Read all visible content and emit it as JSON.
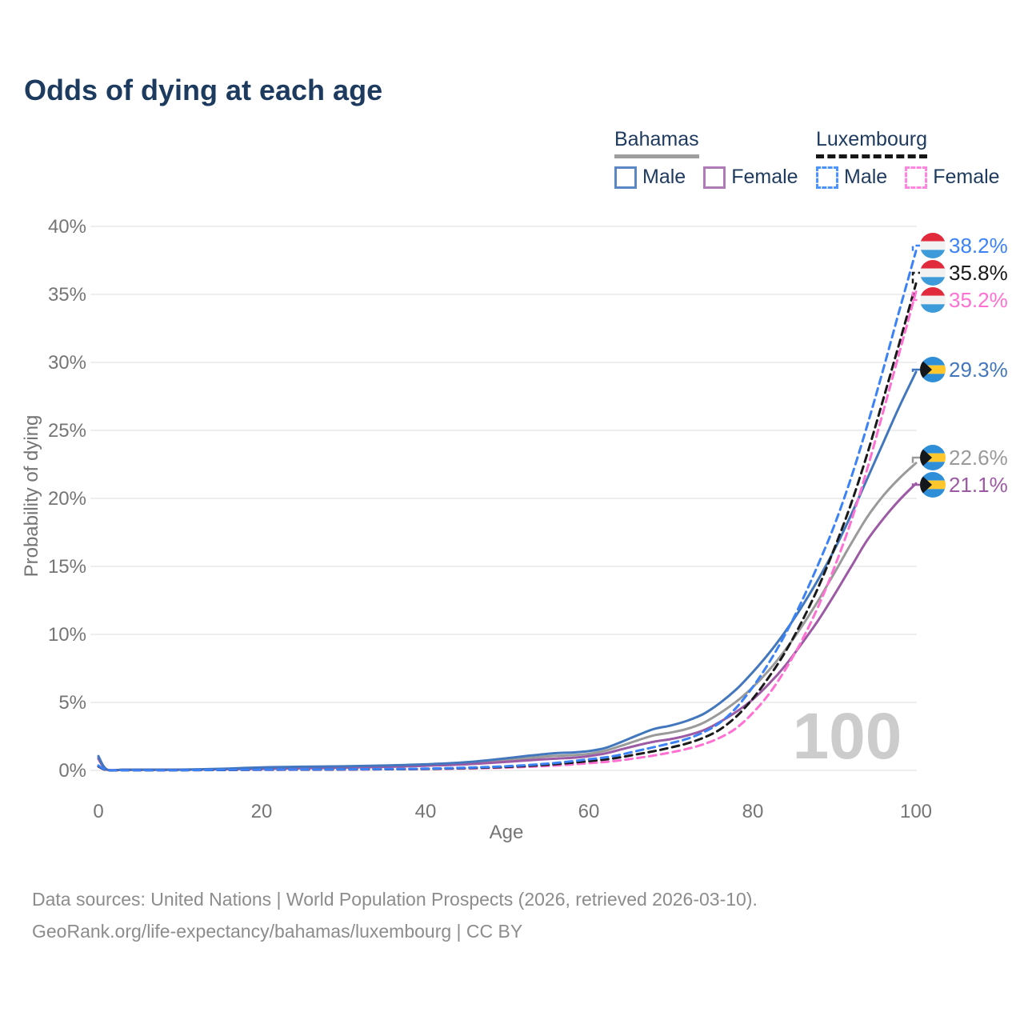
{
  "title": "Odds of dying at each age",
  "watermark": "100",
  "legend": {
    "groups": [
      {
        "name": "Bahamas",
        "line_style": "solid",
        "underline_color": "#9e9e9e",
        "items": [
          {
            "label": "Male",
            "color": "#5b87c5"
          },
          {
            "label": "Female",
            "color": "#b079b8"
          }
        ]
      },
      {
        "name": "Luxembourg",
        "line_style": "dashed",
        "underline_color": "#161616",
        "items": [
          {
            "label": "Male",
            "color": "#4d94ff"
          },
          {
            "label": "Female",
            "color": "#ff85e0"
          }
        ]
      }
    ]
  },
  "axes": {
    "y_title": "Probability of dying",
    "x_title": "Age",
    "y_ticks": [
      "0%",
      "5%",
      "10%",
      "15%",
      "20%",
      "25%",
      "30%",
      "35%",
      "40%"
    ],
    "y_tick_values": [
      0,
      5,
      10,
      15,
      20,
      25,
      30,
      35,
      40
    ],
    "x_ticks": [
      "0",
      "20",
      "40",
      "60",
      "80",
      "100"
    ],
    "x_tick_values": [
      0,
      20,
      40,
      60,
      80,
      100
    ]
  },
  "flags": {
    "luxembourg": {
      "red": "#e12a3c",
      "white": "#f2f2f2",
      "blue": "#3d9bd9"
    },
    "bahamas": {
      "aqua": "#2e8fd8",
      "gold": "#ffc72c",
      "black": "#14171c"
    }
  },
  "chart_data": {
    "type": "line",
    "title": "Odds of dying at each age",
    "xlabel": "Age",
    "ylabel": "Probability of dying",
    "xlim": [
      0,
      100
    ],
    "ylim": [
      0,
      40
    ],
    "grid": true,
    "legend_position": "top-right",
    "series": [
      {
        "name": "Luxembourg Male",
        "country": "Luxembourg",
        "sex": "Male",
        "color": "#3b82f6",
        "dashed": true,
        "flag": "luxembourg",
        "end_value": 38.2,
        "end_label": "38.2%",
        "points": [
          [
            0,
            0.35
          ],
          [
            1,
            0.04
          ],
          [
            3,
            0.02
          ],
          [
            5,
            0.02
          ],
          [
            10,
            0.02
          ],
          [
            15,
            0.04
          ],
          [
            20,
            0.06
          ],
          [
            25,
            0.07
          ],
          [
            30,
            0.08
          ],
          [
            35,
            0.1
          ],
          [
            40,
            0.13
          ],
          [
            45,
            0.2
          ],
          [
            50,
            0.31
          ],
          [
            55,
            0.5
          ],
          [
            60,
            0.82
          ],
          [
            63,
            1.05
          ],
          [
            66,
            1.45
          ],
          [
            68,
            1.72
          ],
          [
            70,
            2.0
          ],
          [
            72,
            2.32
          ],
          [
            74,
            2.8
          ],
          [
            76,
            3.5
          ],
          [
            78,
            4.6
          ],
          [
            80,
            6.1
          ],
          [
            82,
            7.9
          ],
          [
            84,
            10.0
          ],
          [
            86,
            12.4
          ],
          [
            88,
            15.1
          ],
          [
            90,
            18.0
          ],
          [
            92,
            21.4
          ],
          [
            94,
            25.3
          ],
          [
            96,
            29.5
          ],
          [
            98,
            33.9
          ],
          [
            100,
            38.2
          ]
        ]
      },
      {
        "name": "Luxembourg",
        "country": "Luxembourg",
        "sex": "Both",
        "color": "#1a1a1a",
        "dashed": true,
        "flag": "luxembourg",
        "end_value": 35.8,
        "end_label": "35.8%",
        "points": [
          [
            0,
            0.3
          ],
          [
            1,
            0.03
          ],
          [
            3,
            0.02
          ],
          [
            5,
            0.02
          ],
          [
            10,
            0.02
          ],
          [
            15,
            0.03
          ],
          [
            20,
            0.05
          ],
          [
            25,
            0.06
          ],
          [
            30,
            0.07
          ],
          [
            35,
            0.09
          ],
          [
            40,
            0.11
          ],
          [
            45,
            0.17
          ],
          [
            50,
            0.26
          ],
          [
            55,
            0.42
          ],
          [
            60,
            0.68
          ],
          [
            63,
            0.88
          ],
          [
            66,
            1.2
          ],
          [
            68,
            1.42
          ],
          [
            70,
            1.68
          ],
          [
            72,
            1.98
          ],
          [
            74,
            2.4
          ],
          [
            76,
            3.0
          ],
          [
            78,
            3.95
          ],
          [
            80,
            5.25
          ],
          [
            82,
            6.85
          ],
          [
            84,
            8.7
          ],
          [
            86,
            10.9
          ],
          [
            88,
            13.4
          ],
          [
            90,
            16.3
          ],
          [
            92,
            19.5
          ],
          [
            94,
            23.2
          ],
          [
            96,
            27.3
          ],
          [
            98,
            31.5
          ],
          [
            100,
            35.8
          ]
        ]
      },
      {
        "name": "Luxembourg Female",
        "country": "Luxembourg",
        "sex": "Female",
        "color": "#ff70d2",
        "dashed": true,
        "flag": "luxembourg",
        "end_value": 35.2,
        "end_label": "35.2%",
        "points": [
          [
            0,
            0.28
          ],
          [
            1,
            0.03
          ],
          [
            3,
            0.015
          ],
          [
            5,
            0.015
          ],
          [
            10,
            0.02
          ],
          [
            15,
            0.03
          ],
          [
            20,
            0.04
          ],
          [
            25,
            0.05
          ],
          [
            30,
            0.06
          ],
          [
            35,
            0.08
          ],
          [
            40,
            0.1
          ],
          [
            45,
            0.14
          ],
          [
            50,
            0.21
          ],
          [
            55,
            0.33
          ],
          [
            60,
            0.53
          ],
          [
            63,
            0.68
          ],
          [
            66,
            0.92
          ],
          [
            68,
            1.1
          ],
          [
            70,
            1.32
          ],
          [
            72,
            1.58
          ],
          [
            74,
            1.92
          ],
          [
            76,
            2.4
          ],
          [
            78,
            3.1
          ],
          [
            80,
            4.2
          ],
          [
            82,
            5.6
          ],
          [
            84,
            7.4
          ],
          [
            86,
            9.5
          ],
          [
            88,
            12.0
          ],
          [
            90,
            14.9
          ],
          [
            92,
            18.2
          ],
          [
            94,
            22.1
          ],
          [
            96,
            26.4
          ],
          [
            98,
            30.8
          ],
          [
            100,
            35.2
          ]
        ]
      },
      {
        "name": "Bahamas Male",
        "country": "Bahamas",
        "sex": "Male",
        "color": "#4377bd",
        "dashed": false,
        "flag": "bahamas",
        "end_value": 29.3,
        "end_label": "29.3%",
        "points": [
          [
            0,
            1.05
          ],
          [
            1,
            0.08
          ],
          [
            3,
            0.05
          ],
          [
            5,
            0.05
          ],
          [
            10,
            0.06
          ],
          [
            15,
            0.12
          ],
          [
            20,
            0.22
          ],
          [
            25,
            0.27
          ],
          [
            30,
            0.3
          ],
          [
            35,
            0.36
          ],
          [
            40,
            0.45
          ],
          [
            45,
            0.6
          ],
          [
            50,
            0.9
          ],
          [
            53,
            1.1
          ],
          [
            56,
            1.27
          ],
          [
            58,
            1.32
          ],
          [
            60,
            1.42
          ],
          [
            62,
            1.65
          ],
          [
            64,
            2.1
          ],
          [
            66,
            2.6
          ],
          [
            68,
            3.05
          ],
          [
            70,
            3.3
          ],
          [
            72,
            3.65
          ],
          [
            74,
            4.15
          ],
          [
            76,
            4.95
          ],
          [
            78,
            5.95
          ],
          [
            80,
            7.2
          ],
          [
            82,
            8.6
          ],
          [
            84,
            10.2
          ],
          [
            86,
            12.0
          ],
          [
            88,
            14.0
          ],
          [
            90,
            16.2
          ],
          [
            92,
            18.7
          ],
          [
            94,
            21.4
          ],
          [
            96,
            24.1
          ],
          [
            98,
            26.8
          ],
          [
            100,
            29.3
          ]
        ]
      },
      {
        "name": "Bahamas",
        "country": "Bahamas",
        "sex": "Both",
        "color": "#9a9a9a",
        "dashed": false,
        "flag": "bahamas",
        "end_value": 22.6,
        "end_label": "22.6%",
        "points": [
          [
            0,
            0.95
          ],
          [
            1,
            0.07
          ],
          [
            3,
            0.05
          ],
          [
            5,
            0.05
          ],
          [
            10,
            0.05
          ],
          [
            15,
            0.1
          ],
          [
            20,
            0.17
          ],
          [
            25,
            0.21
          ],
          [
            30,
            0.25
          ],
          [
            35,
            0.31
          ],
          [
            40,
            0.4
          ],
          [
            45,
            0.52
          ],
          [
            50,
            0.76
          ],
          [
            53,
            0.93
          ],
          [
            56,
            1.07
          ],
          [
            58,
            1.12
          ],
          [
            60,
            1.22
          ],
          [
            62,
            1.45
          ],
          [
            64,
            1.82
          ],
          [
            66,
            2.22
          ],
          [
            68,
            2.58
          ],
          [
            70,
            2.78
          ],
          [
            72,
            3.05
          ],
          [
            74,
            3.5
          ],
          [
            76,
            4.2
          ],
          [
            78,
            5.05
          ],
          [
            80,
            6.1
          ],
          [
            82,
            7.35
          ],
          [
            84,
            8.85
          ],
          [
            86,
            10.55
          ],
          [
            88,
            12.45
          ],
          [
            90,
            14.5
          ],
          [
            92,
            16.6
          ],
          [
            94,
            18.6
          ],
          [
            96,
            20.2
          ],
          [
            98,
            21.5
          ],
          [
            100,
            22.6
          ]
        ]
      },
      {
        "name": "Bahamas Female",
        "country": "Bahamas",
        "sex": "Female",
        "color": "#9c59a4",
        "dashed": false,
        "flag": "bahamas",
        "end_value": 21.1,
        "end_label": "21.1%",
        "points": [
          [
            0,
            0.85
          ],
          [
            1,
            0.06
          ],
          [
            3,
            0.04
          ],
          [
            5,
            0.04
          ],
          [
            10,
            0.05
          ],
          [
            15,
            0.08
          ],
          [
            20,
            0.12
          ],
          [
            25,
            0.16
          ],
          [
            30,
            0.2
          ],
          [
            35,
            0.26
          ],
          [
            40,
            0.34
          ],
          [
            45,
            0.45
          ],
          [
            50,
            0.63
          ],
          [
            53,
            0.76
          ],
          [
            56,
            0.87
          ],
          [
            58,
            0.93
          ],
          [
            60,
            1.05
          ],
          [
            62,
            1.25
          ],
          [
            64,
            1.55
          ],
          [
            66,
            1.85
          ],
          [
            68,
            2.12
          ],
          [
            70,
            2.3
          ],
          [
            72,
            2.57
          ],
          [
            74,
            2.95
          ],
          [
            76,
            3.55
          ],
          [
            78,
            4.3
          ],
          [
            80,
            5.2
          ],
          [
            82,
            6.35
          ],
          [
            84,
            7.7
          ],
          [
            86,
            9.3
          ],
          [
            88,
            11.0
          ],
          [
            90,
            12.9
          ],
          [
            92,
            14.9
          ],
          [
            94,
            16.9
          ],
          [
            96,
            18.5
          ],
          [
            98,
            19.9
          ],
          [
            100,
            21.1
          ]
        ]
      }
    ]
  },
  "footer": {
    "line1": "Data sources: United Nations | World Population Prospects (2026, retrieved 2026-03-10).",
    "line2": "GeoRank.org/life-expectancy/bahamas/luxembourg | CC BY"
  }
}
